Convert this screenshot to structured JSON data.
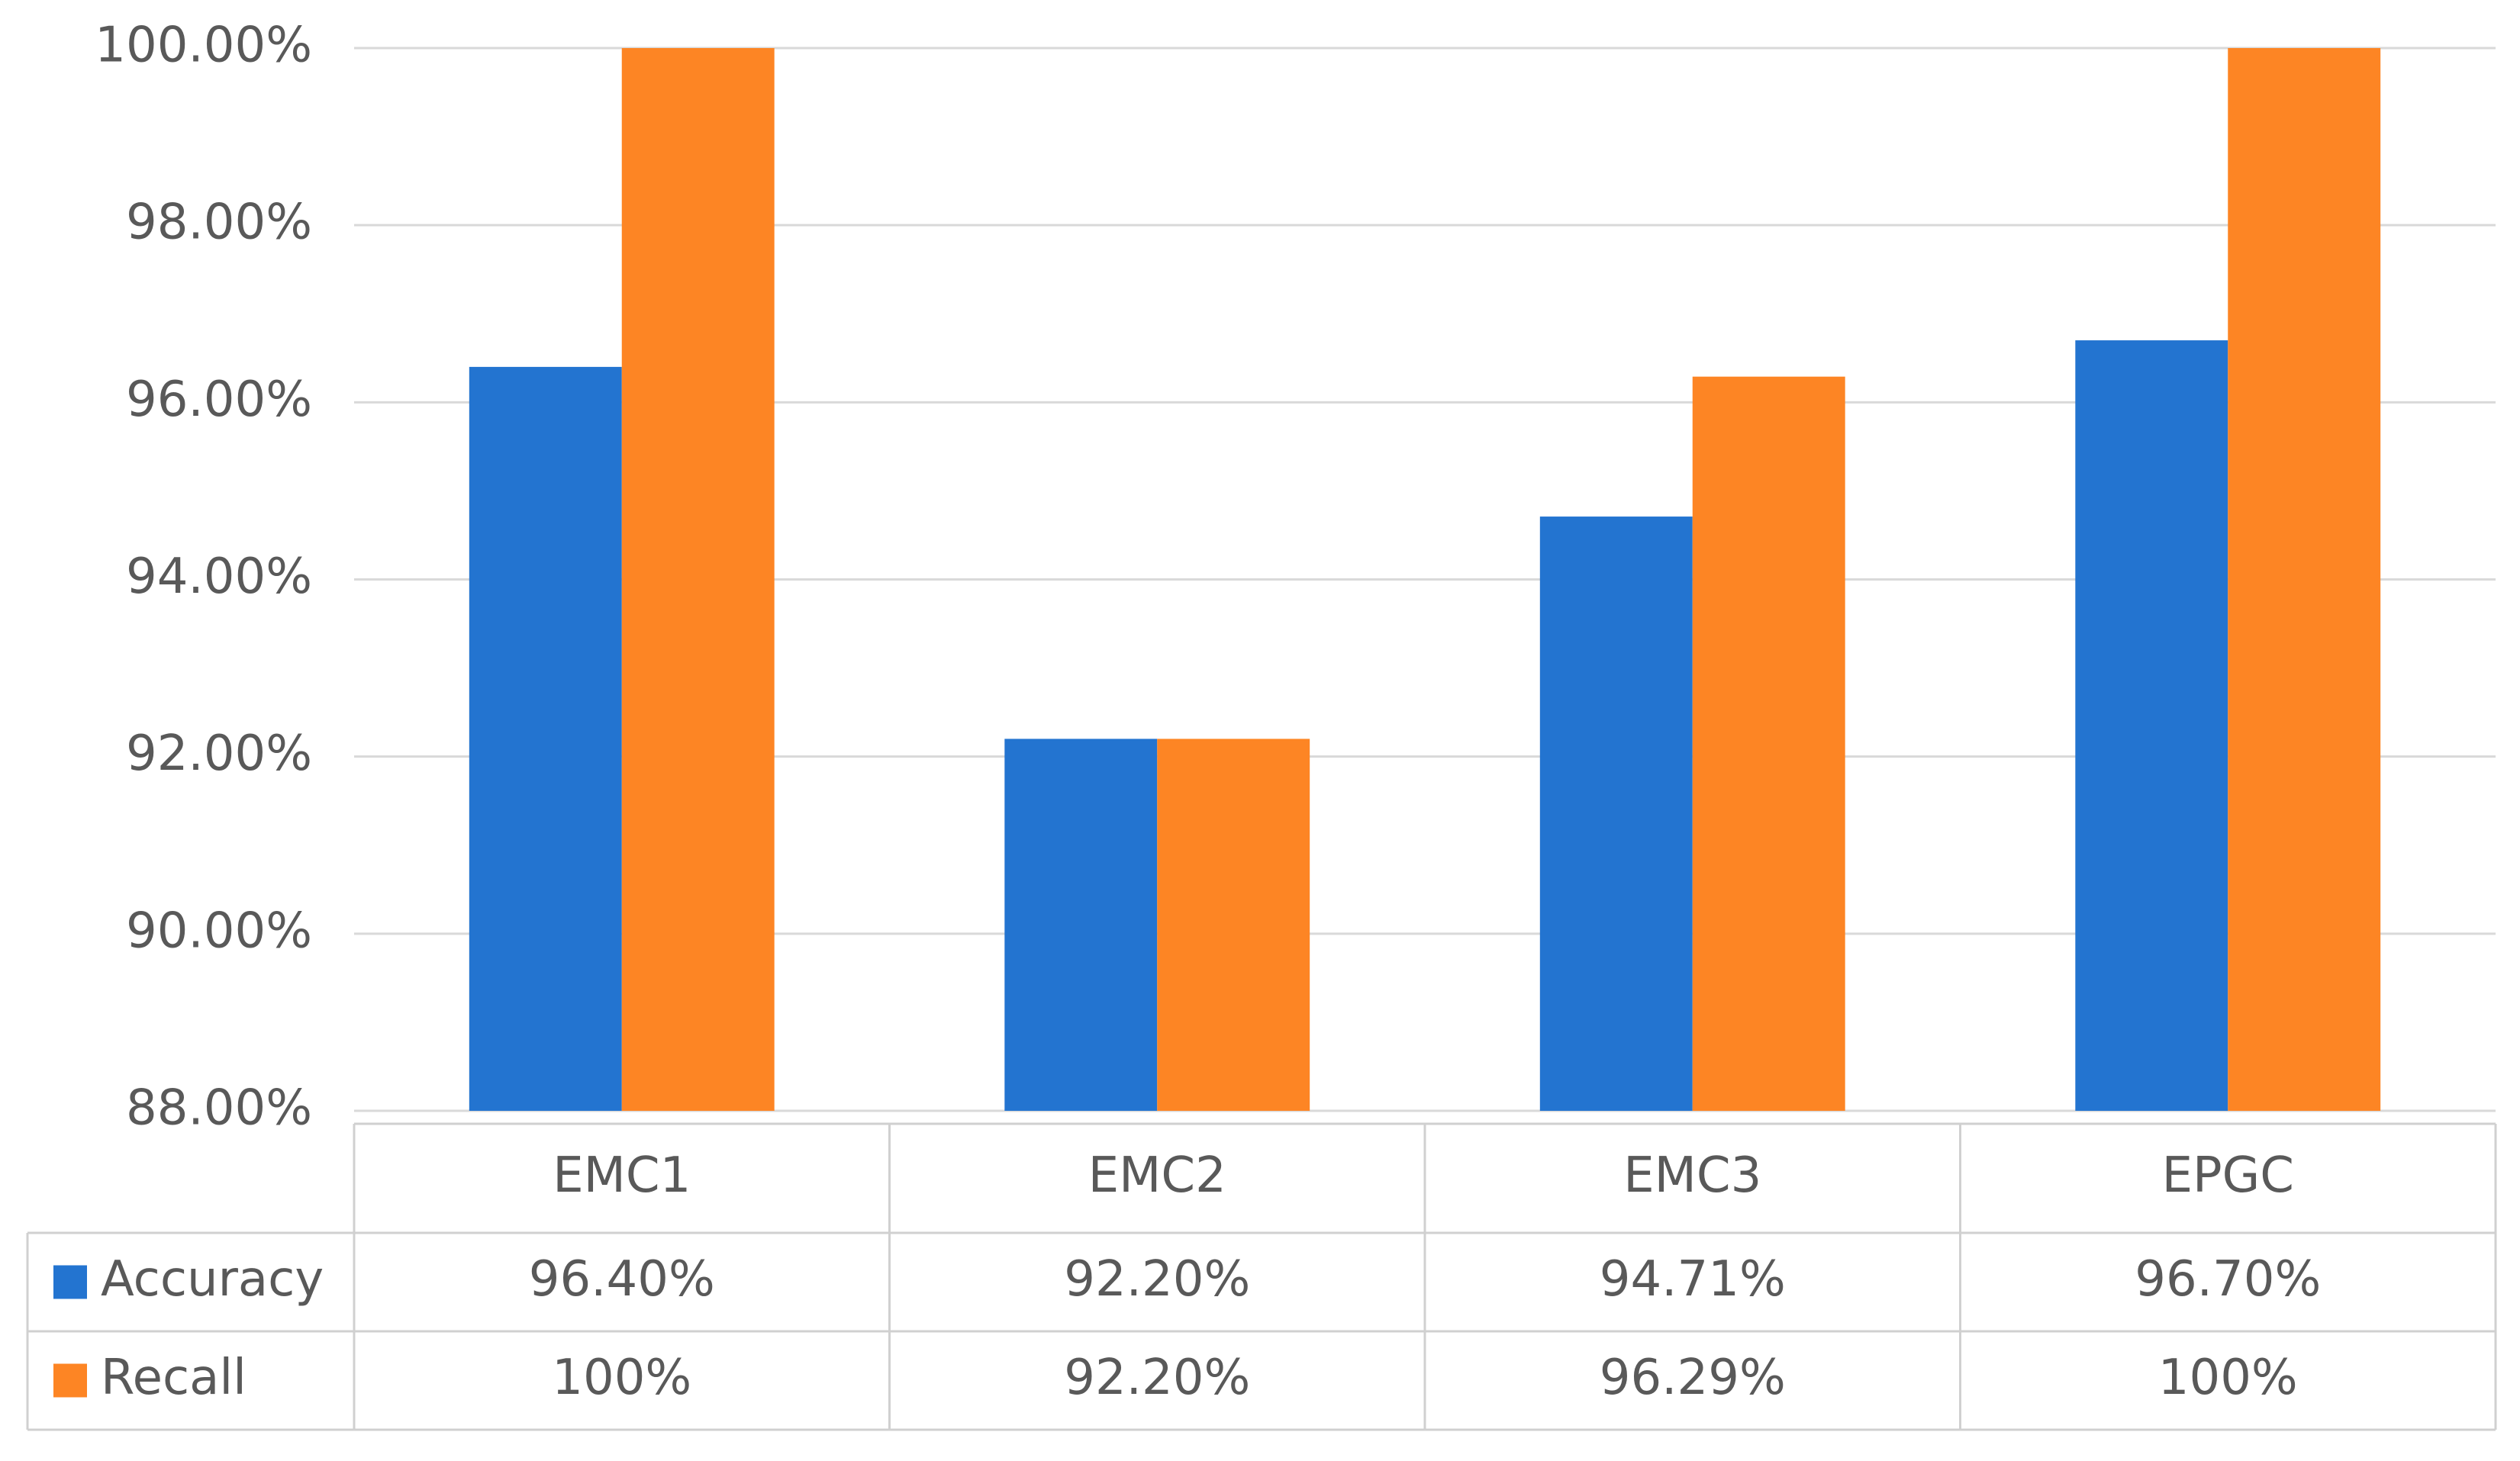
{
  "chart_data": {
    "type": "bar",
    "categories": [
      "EMC1",
      "EMC2",
      "EMC3",
      "EPGC"
    ],
    "series": [
      {
        "name": "Accuracy",
        "color": "#2374d0",
        "values": [
          96.4,
          92.2,
          94.71,
          96.7
        ],
        "value_labels": [
          "96.40%",
          "92.20%",
          "94.71%",
          "96.70%"
        ]
      },
      {
        "name": "Recall",
        "color": "#fd8524",
        "values": [
          100,
          92.2,
          96.29,
          100
        ],
        "value_labels": [
          "100%",
          "92.20%",
          "96.29%",
          "100%"
        ]
      }
    ],
    "ylim": [
      88,
      100
    ],
    "yticks": [
      {
        "value": 88,
        "label": "88.00%"
      },
      {
        "value": 90,
        "label": "90.00%"
      },
      {
        "value": 92,
        "label": "92.00%"
      },
      {
        "value": 94,
        "label": "94.00%"
      },
      {
        "value": 96,
        "label": "96.00%"
      },
      {
        "value": 98,
        "label": "98.00%"
      },
      {
        "value": 100,
        "label": "100.00%"
      }
    ],
    "grid": true
  }
}
